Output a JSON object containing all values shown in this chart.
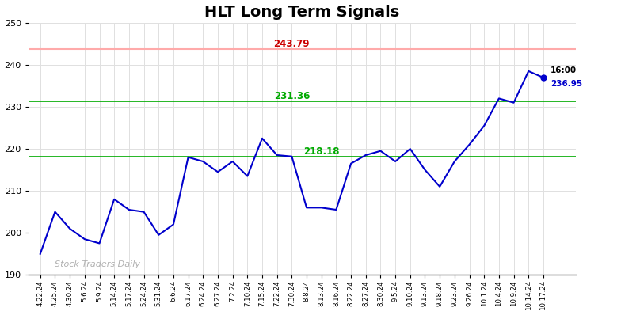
{
  "title": "HLT Long Term Signals",
  "title_fontsize": 14,
  "title_fontweight": "bold",
  "background_color": "#ffffff",
  "plot_bg_color": "#ffffff",
  "line_color": "#0000cc",
  "line_width": 1.5,
  "hline_red_value": 243.79,
  "hline_red_color": "#ffaaaa",
  "hline_red_label_color": "#cc0000",
  "hline_green1_value": 231.36,
  "hline_green1_color": "#00aa00",
  "hline_green2_value": 218.18,
  "hline_green2_color": "#00aa00",
  "label_243": "243.79",
  "label_231": "231.36",
  "label_218": "218.18",
  "last_time_label": "16:00",
  "last_price_label": "236.95",
  "last_price_value": 236.95,
  "watermark_text": "Stock Traders Daily",
  "watermark_color": "#b0b0b0",
  "ylim_min": 190,
  "ylim_max": 250,
  "yticks": [
    190,
    200,
    210,
    220,
    230,
    240,
    250
  ],
  "grid_color": "#e0e0e0",
  "prices": [
    195.0,
    205.0,
    201.0,
    198.5,
    197.5,
    208.0,
    205.5,
    205.0,
    199.5,
    202.0,
    218.0,
    217.0,
    214.5,
    217.0,
    213.5,
    222.5,
    218.5,
    218.18,
    206.0,
    206.0,
    205.5,
    216.5,
    218.5,
    219.5,
    217.0,
    220.0,
    215.0,
    211.0,
    217.0,
    221.0,
    225.5,
    232.0,
    231.0,
    238.5,
    236.95
  ],
  "x_tick_labels": [
    "4.22.24",
    "4.25.24",
    "4.30.24",
    "5.6.24",
    "5.9.24",
    "5.14.24",
    "5.17.24",
    "5.24.24",
    "5.31.24",
    "6.6.24",
    "6.17.24",
    "6.24.24",
    "6.27.24",
    "7.2.24",
    "7.10.24",
    "7.15.24",
    "7.22.24",
    "7.30.24",
    "8.8.24",
    "8.13.24",
    "8.16.24",
    "8.22.24",
    "8.27.24",
    "8.30.24",
    "9.5.24",
    "9.10.24",
    "9.13.24",
    "9.18.24",
    "9.23.24",
    "9.26.24",
    "10.1.24",
    "10.4.24",
    "10.9.24",
    "10.14.24",
    "10.17.24"
  ]
}
